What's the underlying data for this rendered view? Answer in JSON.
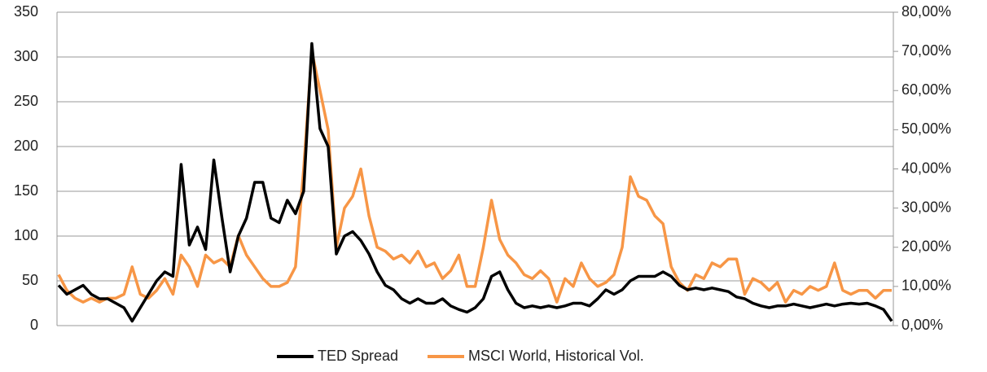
{
  "chart_data": {
    "type": "line",
    "categories": [
      null,
      null,
      null,
      null,
      null,
      null,
      null,
      null,
      null,
      null,
      null,
      null,
      null,
      null,
      null,
      null,
      null,
      null,
      null,
      null,
      null,
      null,
      null,
      null,
      null,
      null,
      null,
      null,
      null,
      null,
      null,
      null,
      null,
      null,
      null,
      null,
      null,
      null,
      null,
      null,
      null,
      null,
      null,
      null,
      null,
      null,
      null,
      null,
      null,
      null,
      null,
      null,
      null,
      null,
      null,
      null,
      null,
      null,
      null,
      null,
      null,
      null,
      null,
      null,
      null,
      null,
      null,
      null,
      null,
      null,
      null,
      null,
      null,
      null,
      null,
      null,
      null,
      null,
      null,
      null,
      null,
      null,
      null,
      null,
      null,
      null,
      null,
      null,
      null,
      null,
      null,
      null,
      null,
      null,
      null,
      null,
      null,
      null,
      null,
      null,
      null,
      null,
      null
    ],
    "series": [
      {
        "name": "TED Spread",
        "color": "#000000",
        "values": [
          45,
          35,
          40,
          45,
          35,
          30,
          30,
          25,
          20,
          5,
          20,
          35,
          50,
          60,
          55,
          180,
          90,
          110,
          85,
          185,
          120,
          60,
          100,
          120,
          160,
          160,
          120,
          115,
          140,
          125,
          150,
          315,
          220,
          200,
          80,
          100,
          105,
          95,
          80,
          60,
          45,
          40,
          30,
          25,
          30,
          25,
          25,
          30,
          22,
          18,
          15,
          20,
          30,
          55,
          60,
          40,
          25,
          20,
          22,
          20,
          22,
          20,
          22,
          25,
          25,
          22,
          30,
          40,
          35,
          40,
          50,
          55,
          55,
          55,
          60,
          55,
          45,
          40,
          42,
          40,
          42,
          40,
          38,
          32,
          30,
          25,
          22,
          20,
          22,
          22,
          24,
          22,
          20,
          22,
          24,
          22,
          24,
          25,
          24,
          25,
          22,
          18,
          5
        ]
      },
      {
        "name": "MSCI World, Historical Vol.",
        "color": "#f79646",
        "axis": "y2",
        "values": [
          13,
          9,
          7,
          6,
          7,
          6,
          7,
          7,
          8,
          15,
          8,
          7,
          9,
          12,
          8,
          18,
          15,
          10,
          18,
          16,
          17,
          15,
          23,
          18,
          15,
          12,
          10,
          10,
          11,
          15,
          40,
          70,
          60,
          50,
          20,
          30,
          33,
          40,
          28,
          20,
          19,
          17,
          18,
          16,
          19,
          15,
          16,
          12,
          14,
          18,
          10,
          10,
          20,
          32,
          22,
          18,
          16,
          13,
          12,
          14,
          12,
          6,
          12,
          10,
          16,
          12,
          10,
          11,
          13,
          20,
          38,
          33,
          32,
          28,
          26,
          15,
          11,
          9,
          13,
          12,
          16,
          15,
          17,
          17,
          8,
          12,
          11,
          9,
          11,
          6,
          9,
          8,
          10,
          9,
          10,
          16,
          9,
          8,
          9,
          9,
          7,
          9,
          9
        ]
      }
    ],
    "ylim": [
      0,
      350
    ],
    "yticks": [
      0,
      50,
      100,
      150,
      200,
      250,
      300,
      350
    ],
    "y2lim": [
      0,
      80
    ],
    "y2ticks": [
      {
        "value": 0,
        "label": "0,00%"
      },
      {
        "value": 10,
        "label": "10,00%"
      },
      {
        "value": 20,
        "label": "20,00%"
      },
      {
        "value": 30,
        "label": "30,00%"
      },
      {
        "value": 40,
        "label": "40,00%"
      },
      {
        "value": 50,
        "label": "50,00%"
      },
      {
        "value": 60,
        "label": "60,00%"
      },
      {
        "value": 70,
        "label": "70,00%"
      },
      {
        "value": 80,
        "label": "80,00%"
      }
    ],
    "grid": true,
    "legend": "bottom"
  }
}
